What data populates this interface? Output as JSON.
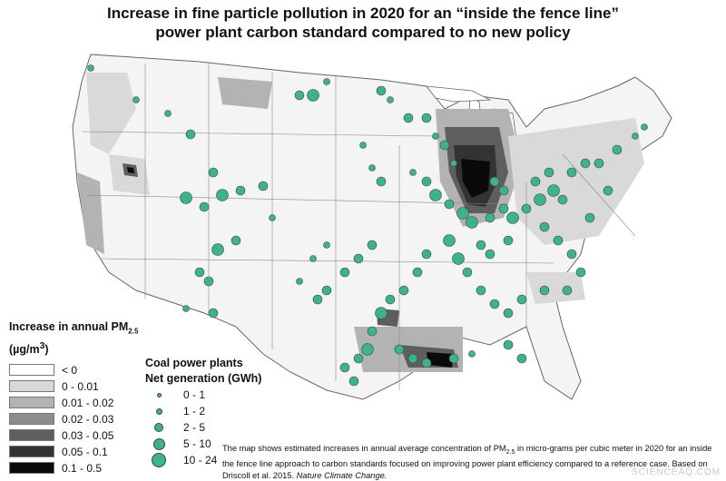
{
  "title": {
    "line1": "Increase in fine particle pollution in 2020 for an “inside the fence line”",
    "line2": "power plant carbon standard compared to no new policy"
  },
  "pm_legend": {
    "heading_main": "Increase in annual PM",
    "heading_sub": "2.5",
    "unit_prefix": "(µg/m",
    "unit_sup": "3",
    "unit_suffix": ")",
    "classes": [
      {
        "label": "< 0",
        "color": "#ffffff"
      },
      {
        "label": "0 - 0.01",
        "color": "#d9d9d9"
      },
      {
        "label": "0.01 - 0.02",
        "color": "#b3b3b3"
      },
      {
        "label": "0.02 - 0.03",
        "color": "#8c8c8c"
      },
      {
        "label": "0.03 - 0.05",
        "color": "#5e5e5e"
      },
      {
        "label": "0.05 - 0.1",
        "color": "#333333"
      },
      {
        "label": "0.1 - 0.5",
        "color": "#0a0a0a"
      }
    ]
  },
  "coal_legend": {
    "heading_line1": "Coal power plants",
    "heading_line2": "Net generation (GWh)",
    "classes": [
      {
        "label": "0 - 1",
        "size": 1
      },
      {
        "label": "1 - 2",
        "size": 2
      },
      {
        "label": "2 - 5",
        "size": 3
      },
      {
        "label": "5 - 10",
        "size": 4
      },
      {
        "label": "10 - 24",
        "size": 5
      }
    ],
    "dot_color": "#3cb38a"
  },
  "caption": {
    "part1": "The map shows estimated increases in annual average concentration of PM",
    "sub1": "2.5",
    "part2": " in micro-grams per cubic meter in 2020  for an inside the fence line approach to carbon standards focused on improving power plant efficiency compared to a reference case. Based on Driscoll et al. 2015. ",
    "journal": "Nature Climate Change."
  },
  "watermark": "SCIENCEAQ.COM"
}
